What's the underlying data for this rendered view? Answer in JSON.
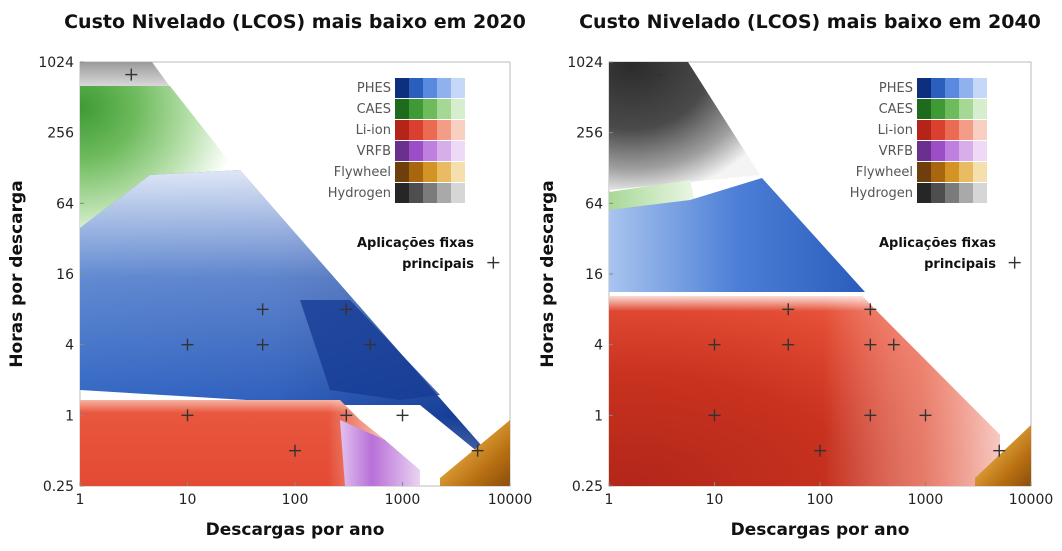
{
  "chart_data": [
    {
      "type": "heatmap",
      "title": "Custo Nivelado (LCOS) mais baixo em 2020",
      "xlabel": "Descargas por ano",
      "ylabel": "Horas por descarga",
      "xscale": "log",
      "yscale": "log",
      "xlim": [
        1,
        10000
      ],
      "ylim": [
        0.25,
        1024
      ],
      "x_ticks": [
        "1",
        "10",
        "100",
        "1000",
        "10000"
      ],
      "y_ticks": [
        "0.25",
        "1",
        "4",
        "16",
        "64",
        "256",
        "1024"
      ],
      "legend": {
        "placement": "top-right",
        "entries": [
          {
            "name": "PHES",
            "colors": [
              "#0d2f7d",
              "#2b5fbe",
              "#5a8ae0",
              "#8fb1ee",
              "#c6d8f7"
            ]
          },
          {
            "name": "CAES",
            "colors": [
              "#1e6b1e",
              "#3d9a34",
              "#6dbb5a",
              "#a4d894",
              "#d6eecd"
            ]
          },
          {
            "name": "Li-ion",
            "colors": [
              "#b52418",
              "#d9402f",
              "#ea6a52",
              "#f39d86",
              "#f9cfc2"
            ]
          },
          {
            "name": "VRFB",
            "colors": [
              "#6b2f8d",
              "#9b4ec6",
              "#bf7fdf",
              "#d8aeea",
              "#eedaf6"
            ]
          },
          {
            "name": "Flywheel",
            "colors": [
              "#6e3f0c",
              "#a8660f",
              "#d39325",
              "#e9bb63",
              "#f5dfae"
            ]
          },
          {
            "name": "Hydrogen",
            "colors": [
              "#262626",
              "#4e4e4e",
              "#7b7b7b",
              "#a9a9a9",
              "#d6d6d6"
            ]
          }
        ]
      },
      "annotation": {
        "line1": "Aplicações fixas",
        "line2": "principais"
      },
      "regions": [
        {
          "technology": "Hydrogen",
          "x_range": [
            1,
            10
          ],
          "y_range": [
            600,
            1024
          ]
        },
        {
          "technology": "CAES",
          "x_range": [
            1,
            20
          ],
          "y_range": [
            30,
            600
          ]
        },
        {
          "technology": "PHES",
          "x_range": [
            1,
            5000
          ],
          "y_range": [
            2,
            200
          ]
        },
        {
          "technology": "Li-ion",
          "x_range": [
            1,
            1500
          ],
          "y_range": [
            0.25,
            1.2
          ]
        },
        {
          "technology": "VRFB",
          "x_range": [
            400,
            1500
          ],
          "y_range": [
            0.25,
            1
          ]
        },
        {
          "technology": "Flywheel",
          "x_range": [
            3000,
            10000
          ],
          "y_range": [
            0.25,
            0.6
          ]
        }
      ],
      "applications": [
        {
          "x": 3,
          "y": 800
        },
        {
          "x": 10,
          "y": 4
        },
        {
          "x": 10,
          "y": 1
        },
        {
          "x": 50,
          "y": 8
        },
        {
          "x": 50,
          "y": 4
        },
        {
          "x": 100,
          "y": 0.5
        },
        {
          "x": 300,
          "y": 8
        },
        {
          "x": 300,
          "y": 1
        },
        {
          "x": 500,
          "y": 4
        },
        {
          "x": 1000,
          "y": 1
        },
        {
          "x": 5000,
          "y": 0.5
        },
        {
          "x": 7000,
          "y": 20
        }
      ]
    },
    {
      "type": "heatmap",
      "title": "Custo Nivelado (LCOS) mais baixo em 2040",
      "xlabel": "Descargas por ano",
      "ylabel": "Horas por descarga",
      "xscale": "log",
      "yscale": "log",
      "xlim": [
        1,
        10000
      ],
      "ylim": [
        0.25,
        1024
      ],
      "x_ticks": [
        "1",
        "10",
        "100",
        "1000",
        "10000"
      ],
      "y_ticks": [
        "0.25",
        "1",
        "4",
        "16",
        "64",
        "256",
        "1024"
      ],
      "legend": {
        "placement": "top-right",
        "entries": [
          {
            "name": "PHES",
            "colors": [
              "#0d2f7d",
              "#2b5fbe",
              "#5a8ae0",
              "#8fb1ee",
              "#c6d8f7"
            ]
          },
          {
            "name": "CAES",
            "colors": [
              "#1e6b1e",
              "#3d9a34",
              "#6dbb5a",
              "#a4d894",
              "#d6eecd"
            ]
          },
          {
            "name": "Li-ion",
            "colors": [
              "#b52418",
              "#d9402f",
              "#ea6a52",
              "#f39d86",
              "#f9cfc2"
            ]
          },
          {
            "name": "VRFB",
            "colors": [
              "#6b2f8d",
              "#9b4ec6",
              "#bf7fdf",
              "#d8aeea",
              "#eedaf6"
            ]
          },
          {
            "name": "Flywheel",
            "colors": [
              "#6e3f0c",
              "#a8660f",
              "#d39325",
              "#e9bb63",
              "#f5dfae"
            ]
          },
          {
            "name": "Hydrogen",
            "colors": [
              "#262626",
              "#4e4e4e",
              "#7b7b7b",
              "#a9a9a9",
              "#d6d6d6"
            ]
          }
        ]
      },
      "annotation": {
        "line1": "Aplicações fixas",
        "line2": "principais"
      },
      "regions": [
        {
          "technology": "Hydrogen",
          "x_range": [
            1,
            30
          ],
          "y_range": [
            150,
            1024
          ]
        },
        {
          "technology": "CAES",
          "x_range": [
            1,
            15
          ],
          "y_range": [
            40,
            150
          ]
        },
        {
          "technology": "PHES",
          "x_range": [
            1,
            60
          ],
          "y_range": [
            12,
            80
          ]
        },
        {
          "technology": "Li-ion",
          "x_range": [
            1,
            4000
          ],
          "y_range": [
            0.25,
            12
          ]
        },
        {
          "technology": "Flywheel",
          "x_range": [
            4000,
            10000
          ],
          "y_range": [
            0.25,
            0.6
          ]
        }
      ],
      "applications": [
        {
          "x": 3,
          "y": 800
        },
        {
          "x": 10,
          "y": 4
        },
        {
          "x": 10,
          "y": 1
        },
        {
          "x": 50,
          "y": 8
        },
        {
          "x": 50,
          "y": 4
        },
        {
          "x": 100,
          "y": 0.5
        },
        {
          "x": 300,
          "y": 8
        },
        {
          "x": 300,
          "y": 4
        },
        {
          "x": 300,
          "y": 1
        },
        {
          "x": 500,
          "y": 4
        },
        {
          "x": 1000,
          "y": 1
        },
        {
          "x": 5000,
          "y": 0.5
        },
        {
          "x": 7000,
          "y": 20
        }
      ]
    }
  ]
}
